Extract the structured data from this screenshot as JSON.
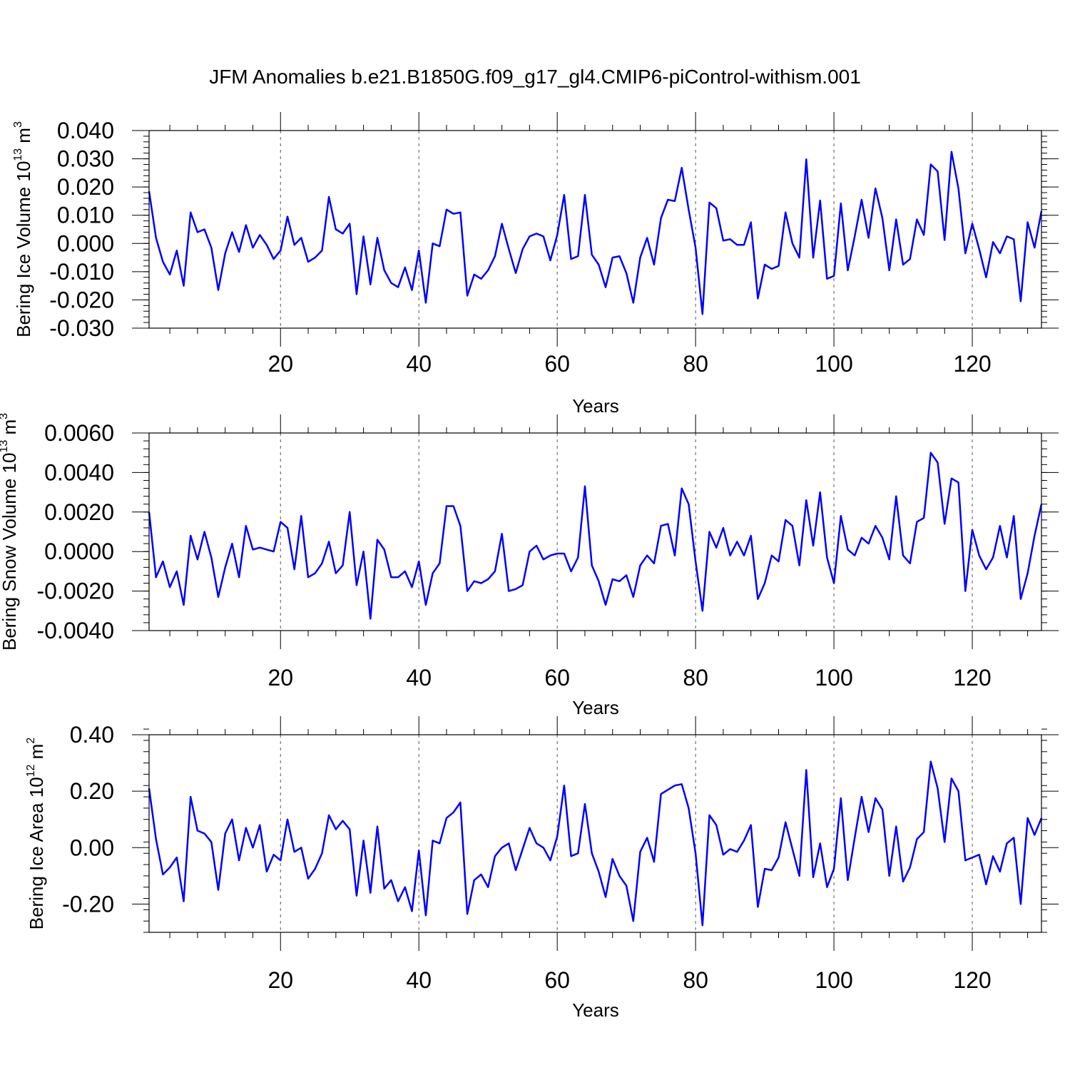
{
  "title": "JFM Anomalies b.e21.B1850G.f09_g17_gl4.CMIP6-piControl-withism.001",
  "chart_data": [
    {
      "type": "line",
      "ylabel": "Bering Ice Volume 10",
      "ylabel_exp": "13",
      "ylabel_unit": " m",
      "ylabel_unit_exp": "3",
      "xlabel": "Years",
      "xlim": [
        1,
        130
      ],
      "ylim": [
        -0.03,
        0.04
      ],
      "x_ticks": [
        20,
        40,
        60,
        80,
        100,
        120
      ],
      "x_tick_labels": [
        "20",
        "40",
        "60",
        "80",
        "100",
        "120"
      ],
      "y_ticks": [
        -0.03,
        -0.02,
        -0.01,
        0.0,
        0.01,
        0.02,
        0.03,
        0.04
      ],
      "y_tick_labels": [
        "-0.030",
        "-0.020",
        "-0.010",
        "0.000",
        "0.010",
        "0.020",
        "0.030",
        "0.040"
      ],
      "y_minor_step": 0.002,
      "grid": "dashed vertical at x ticks",
      "series": [
        {
          "name": "Bering Ice Volume",
          "color": "#0000ff",
          "values": [
            0.0185,
            0.002,
            -0.0065,
            -0.011,
            -0.0025,
            -0.015,
            0.011,
            0.004,
            0.005,
            -0.0015,
            -0.0165,
            -0.0035,
            0.004,
            -0.003,
            0.0065,
            -0.0015,
            0.003,
            -0.0005,
            -0.0055,
            -0.0025,
            0.0095,
            -0.0005,
            0.002,
            -0.0065,
            -0.005,
            -0.0025,
            0.0165,
            0.005,
            0.0035,
            0.007,
            -0.018,
            0.0025,
            -0.0145,
            0.002,
            -0.0095,
            -0.014,
            -0.0155,
            -0.0085,
            -0.0165,
            -0.0025,
            -0.021,
            0.0,
            -0.001,
            0.012,
            0.0105,
            0.011,
            -0.0185,
            -0.011,
            -0.0125,
            -0.0095,
            -0.0045,
            0.007,
            -0.002,
            -0.0105,
            -0.002,
            0.0025,
            0.0035,
            0.0025,
            -0.006,
            0.003,
            0.0172,
            -0.0055,
            -0.0045,
            0.0172,
            -0.004,
            -0.0075,
            -0.0155,
            -0.005,
            -0.0045,
            -0.0105,
            -0.021,
            -0.005,
            0.002,
            -0.0075,
            0.009,
            0.0155,
            0.015,
            0.0268,
            0.012,
            -0.0015,
            -0.025,
            0.0145,
            0.0125,
            0.001,
            0.0015,
            -0.0005,
            -0.0005,
            0.0075,
            -0.0195,
            -0.0075,
            -0.009,
            -0.008,
            0.011,
            0.0,
            -0.005,
            0.0298,
            -0.005,
            0.0152,
            -0.0125,
            -0.0115,
            0.0142,
            -0.0095,
            0.0025,
            0.0155,
            0.002,
            0.0195,
            0.009,
            -0.0095,
            0.0085,
            -0.0075,
            -0.0055,
            0.0085,
            0.003,
            0.028,
            0.0255,
            0.0012,
            0.0325,
            0.0195,
            -0.0035,
            0.007,
            -0.002,
            -0.012,
            0.0005,
            -0.0035,
            0.0025,
            0.0015,
            -0.0205,
            0.0075,
            -0.0015,
            0.0115
          ]
        }
      ]
    },
    {
      "type": "line",
      "ylabel": "Bering Snow Volume 10",
      "ylabel_exp": "13",
      "ylabel_unit": " m",
      "ylabel_unit_exp": "3",
      "xlabel": "Years",
      "xlim": [
        1,
        130
      ],
      "ylim": [
        -0.004,
        0.006
      ],
      "x_ticks": [
        20,
        40,
        60,
        80,
        100,
        120
      ],
      "x_tick_labels": [
        "20",
        "40",
        "60",
        "80",
        "100",
        "120"
      ],
      "y_ticks": [
        -0.004,
        -0.002,
        0.0,
        0.002,
        0.004,
        0.006
      ],
      "y_tick_labels": [
        "-0.0040",
        "-0.0020",
        "0.0000",
        "0.0020",
        "0.0040",
        "0.0060"
      ],
      "y_minor_step": 0.0004,
      "grid": "dashed vertical at x ticks",
      "series": [
        {
          "name": "Bering Snow Volume",
          "color": "#0000ff",
          "values": [
            0.002,
            -0.0013,
            -0.0005,
            -0.0018,
            -0.001,
            -0.0027,
            0.0008,
            -0.0004,
            0.001,
            -0.0003,
            -0.0023,
            -0.0008,
            0.0004,
            -0.0013,
            0.0013,
            0.0001,
            0.0002,
            0.0001,
            0.0,
            0.0015,
            0.0012,
            -0.0009,
            0.0018,
            -0.0013,
            -0.0011,
            -0.0006,
            0.0005,
            -0.0011,
            -0.0007,
            0.002,
            -0.0017,
            0.0,
            -0.0034,
            0.0006,
            0.0001,
            -0.0013,
            -0.0013,
            -0.001,
            -0.0018,
            -0.0005,
            -0.0027,
            -0.0011,
            -0.0006,
            0.0023,
            0.0023,
            0.0013,
            -0.002,
            -0.0015,
            -0.0016,
            -0.0014,
            -0.001,
            0.0009,
            -0.002,
            -0.0019,
            -0.0017,
            0.0,
            0.0003,
            -0.0004,
            -0.0002,
            -0.0001,
            -0.0001,
            -0.001,
            -0.0003,
            0.0033,
            -0.0007,
            -0.0015,
            -0.0027,
            -0.0014,
            -0.0015,
            -0.0012,
            -0.0023,
            -0.0007,
            -0.0002,
            -0.0006,
            0.0013,
            0.0014,
            -0.0002,
            0.0032,
            0.0024,
            -0.0005,
            -0.003,
            0.001,
            0.0002,
            0.0012,
            -0.0002,
            0.0005,
            -0.0002,
            0.0008,
            -0.0024,
            -0.0016,
            -0.0002,
            -0.0005,
            0.0016,
            0.0013,
            -0.0007,
            0.0026,
            0.0003,
            0.003,
            -0.0003,
            -0.0016,
            0.0018,
            0.0001,
            -0.0002,
            0.0007,
            0.0004,
            0.0013,
            0.0007,
            -0.0004,
            0.0028,
            -0.0002,
            -0.0006,
            0.0015,
            0.0017,
            0.005,
            0.0045,
            0.0014,
            0.0037,
            0.0035,
            -0.002,
            0.0011,
            -0.0002,
            -0.0009,
            -0.0003,
            0.0013,
            -0.0003,
            0.0018,
            -0.0024,
            -0.0011,
            0.0008,
            0.0024
          ]
        }
      ]
    },
    {
      "type": "line",
      "ylabel": "Bering Ice Area 10",
      "ylabel_exp": "12",
      "ylabel_unit": " m",
      "ylabel_unit_exp": "2",
      "xlabel": "Years",
      "xlim": [
        1,
        130
      ],
      "ylim": [
        -0.3,
        0.4
      ],
      "x_ticks": [
        20,
        40,
        60,
        80,
        100,
        120
      ],
      "x_tick_labels": [
        "20",
        "40",
        "60",
        "80",
        "100",
        "120"
      ],
      "y_ticks": [
        -0.2,
        0.0,
        0.2,
        0.4
      ],
      "y_tick_labels": [
        "-0.20",
        "0.00",
        "0.20",
        "0.40"
      ],
      "y_minor_step": 0.04,
      "grid": "dashed vertical at x ticks",
      "series": [
        {
          "name": "Bering Ice Area",
          "color": "#0000ff",
          "values": [
            0.21,
            0.03,
            -0.095,
            -0.07,
            -0.035,
            -0.19,
            0.18,
            0.06,
            0.05,
            0.02,
            -0.15,
            0.05,
            0.1,
            -0.045,
            0.07,
            0.0,
            0.08,
            -0.085,
            -0.025,
            -0.045,
            0.1,
            -0.015,
            0.0,
            -0.11,
            -0.075,
            -0.02,
            0.115,
            0.065,
            0.095,
            0.065,
            -0.17,
            0.025,
            -0.16,
            0.075,
            -0.145,
            -0.115,
            -0.19,
            -0.14,
            -0.225,
            -0.01,
            -0.24,
            0.025,
            0.015,
            0.105,
            0.125,
            0.16,
            -0.235,
            -0.115,
            -0.095,
            -0.14,
            -0.03,
            0.0,
            0.015,
            -0.08,
            -0.005,
            0.07,
            0.015,
            0.0,
            -0.045,
            0.04,
            0.22,
            -0.03,
            -0.02,
            0.155,
            -0.02,
            -0.085,
            -0.175,
            -0.04,
            -0.1,
            -0.135,
            -0.26,
            -0.015,
            0.035,
            -0.05,
            0.19,
            0.205,
            0.22,
            0.225,
            0.14,
            -0.02,
            -0.275,
            0.115,
            0.08,
            -0.025,
            -0.005,
            -0.015,
            0.025,
            0.08,
            -0.21,
            -0.075,
            -0.08,
            -0.035,
            0.09,
            -0.005,
            -0.1,
            0.275,
            -0.105,
            0.015,
            -0.14,
            -0.075,
            0.175,
            -0.115,
            0.035,
            0.18,
            0.055,
            0.175,
            0.135,
            -0.1,
            0.075,
            -0.12,
            -0.07,
            0.03,
            0.055,
            0.305,
            0.21,
            0.02,
            0.245,
            0.2,
            -0.045,
            -0.035,
            -0.025,
            -0.13,
            -0.03,
            -0.085,
            0.015,
            0.035,
            -0.2,
            0.105,
            0.045,
            0.105
          ]
        }
      ]
    }
  ]
}
